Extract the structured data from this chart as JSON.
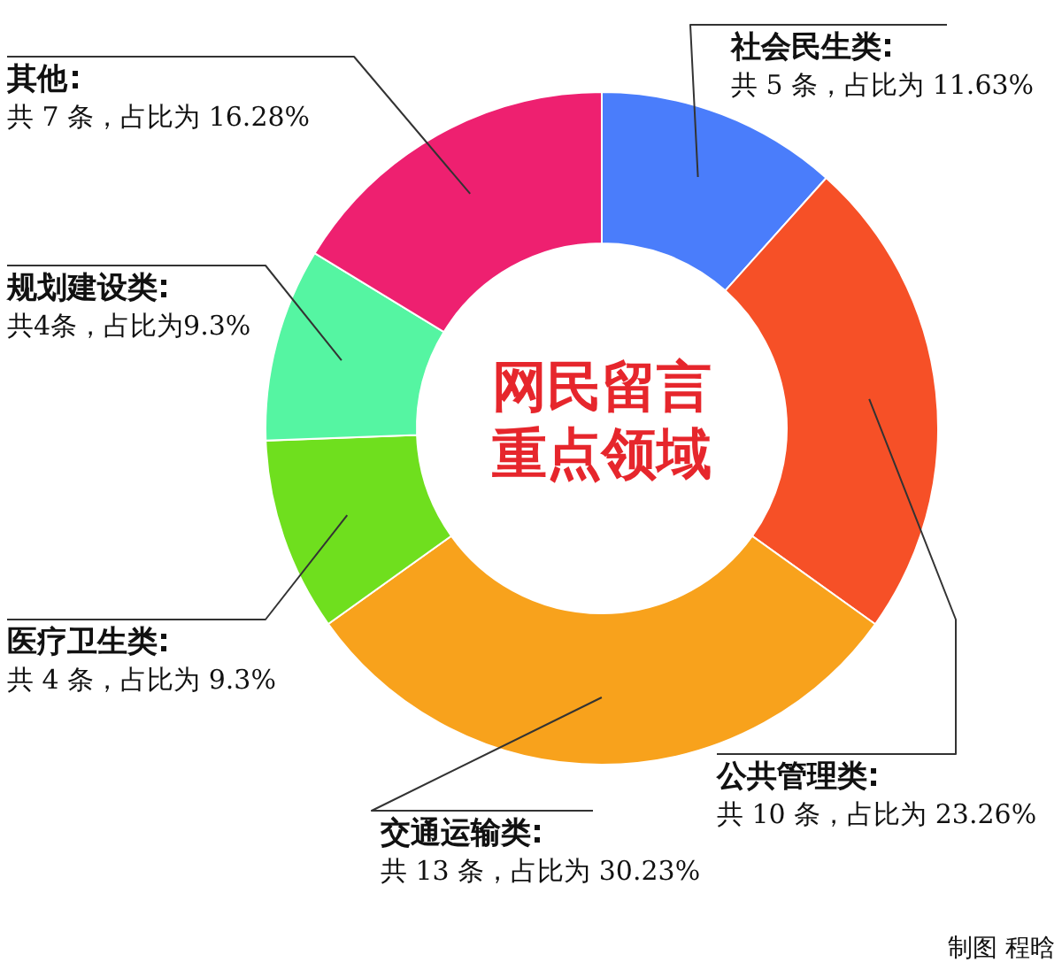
{
  "chart_data": {
    "type": "donut",
    "title": "网民留言重点领域",
    "categories": [
      "社会民生类",
      "公共管理类",
      "交通运输类",
      "医疗卫生类",
      "规划建设类",
      "其他"
    ],
    "values": [
      11.63,
      23.26,
      30.23,
      9.3,
      9.3,
      16.28
    ],
    "colors": [
      "#4a7dfb",
      "#f65027",
      "#f8a21c",
      "#6fdf1e",
      "#55f5a2",
      "#ee2070"
    ],
    "value_labels": [
      "共 5 条，占比为 11.63%",
      "共 10 条，占比为 23.26%",
      "共 13 条，占比为 30.23%",
      "共 4 条，占比为 9.3%",
      "共4条，占比为9.3%",
      "共 7 条，占比为 16.28%"
    ],
    "annotations": [
      "制图 程晗"
    ]
  }
}
